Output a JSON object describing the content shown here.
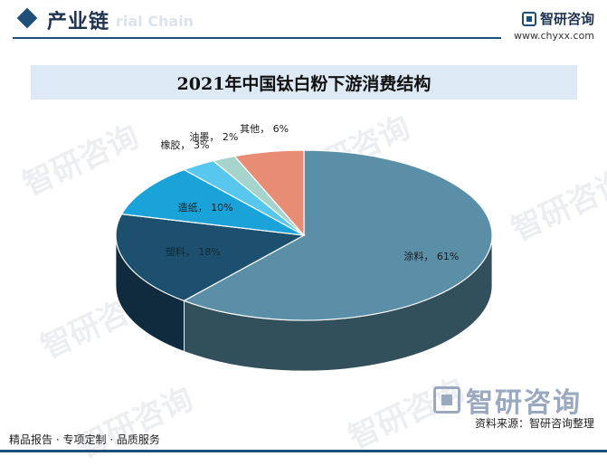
{
  "header": {
    "section_title": "产业链",
    "section_watermark": "rial Chain",
    "brand_name": "智研咨询",
    "brand_url": "www.chyxx.com"
  },
  "colors": {
    "accent": "#1f4e79",
    "title_bg": "#dde9f4"
  },
  "watermark_text": "智研咨询",
  "chart_data": {
    "type": "pie",
    "title": "2021年中国钛白粉下游消费结构",
    "slices": [
      {
        "label": "涂料",
        "value": 61,
        "display": "61%",
        "color": "#5b8fa8"
      },
      {
        "label": "塑料",
        "value": 18,
        "display": "18%",
        "color": "#1d4f6e"
      },
      {
        "label": "造纸",
        "value": 10,
        "display": "10%",
        "color": "#1aa3d9"
      },
      {
        "label": "橡胶",
        "value": 3,
        "display": "3%",
        "color": "#58c7ee"
      },
      {
        "label": "油墨",
        "value": 2,
        "display": "2%",
        "color": "#a6d3cc"
      },
      {
        "label": "其他",
        "value": 6,
        "display": "6%",
        "color": "#e88c74"
      }
    ],
    "label_separator": "，"
  },
  "footer": {
    "left_text": "精品报告 · 专项定制 · 品质服务",
    "source_text": "资料来源：智研咨询整理",
    "logo_text": "智研咨询"
  }
}
